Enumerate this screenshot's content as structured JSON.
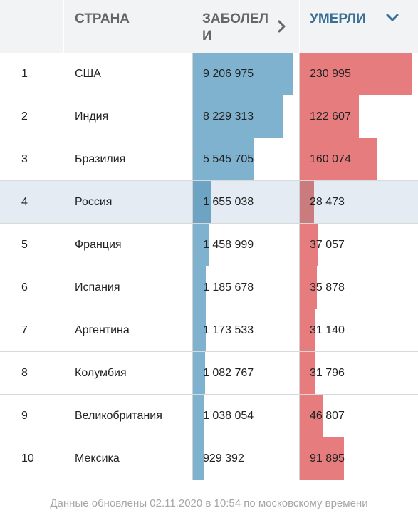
{
  "header": {
    "country": "СТРАНА",
    "cases": "ЗАБОЛЕЛИ",
    "deaths": "УМЕРЛИ",
    "cases_icon": "chevron-right-icon",
    "deaths_icon": "chevron-down-icon"
  },
  "max": {
    "cases": 9206975,
    "deaths": 230995
  },
  "rows": [
    {
      "rank": "1",
      "country": "США",
      "cases": "9 206 975",
      "deaths": "230 995",
      "cases_value": 9206975,
      "deaths_value": 230995
    },
    {
      "rank": "2",
      "country": "Индия",
      "cases": "8 229 313",
      "deaths": "122 607",
      "cases_value": 8229313,
      "deaths_value": 122607
    },
    {
      "rank": "3",
      "country": "Бразилия",
      "cases": "5 545 705",
      "deaths": "160 074",
      "cases_value": 5545705,
      "deaths_value": 160074
    },
    {
      "rank": "4",
      "country": "Россия",
      "cases": "1 655 038",
      "deaths": "28 473",
      "cases_value": 1655038,
      "deaths_value": 28473,
      "highlight": true
    },
    {
      "rank": "5",
      "country": "Франция",
      "cases": "1 458 999",
      "deaths": "37 057",
      "cases_value": 1458999,
      "deaths_value": 37057
    },
    {
      "rank": "6",
      "country": "Испания",
      "cases": "1 185 678",
      "deaths": "35 878",
      "cases_value": 1185678,
      "deaths_value": 35878
    },
    {
      "rank": "7",
      "country": "Аргентина",
      "cases": "1 173 533",
      "deaths": "31 140",
      "cases_value": 1173533,
      "deaths_value": 31140
    },
    {
      "rank": "8",
      "country": "Колумбия",
      "cases": "1 082 767",
      "deaths": "31 796",
      "cases_value": 1082767,
      "deaths_value": 31796
    },
    {
      "rank": "9",
      "country": "Великобритания",
      "cases": "1 038 054",
      "deaths": "46 807",
      "cases_value": 1038054,
      "deaths_value": 46807
    },
    {
      "rank": "10",
      "country": "Мексика",
      "cases": "929 392",
      "deaths": "91 895",
      "cases_value": 929392,
      "deaths_value": 91895
    }
  ],
  "footer": "Данные обновлены 02.11.2020 в 10:54 по московскому времени"
}
